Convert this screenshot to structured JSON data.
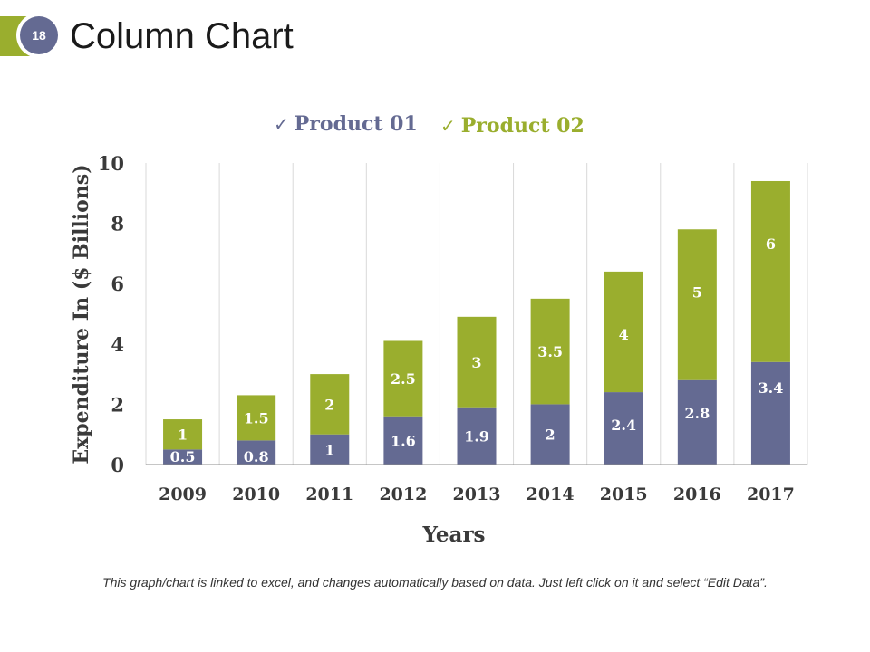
{
  "slide": {
    "page_number": "18",
    "title": "Column Chart",
    "footnote": "This graph/chart is linked to excel, and changes automatically based on data. Just left click on it and select “Edit Data”."
  },
  "colors": {
    "accent": "#9aae2e",
    "product01": "#646a92",
    "product02": "#9aae2e",
    "badge": "#646a92"
  },
  "legend": {
    "check_icon": "✓",
    "product01_label": "Product 01",
    "product02_label": "Product 02"
  },
  "chart_data": {
    "type": "bar",
    "stacked": true,
    "categories": [
      "2009",
      "2010",
      "2011",
      "2012",
      "2013",
      "2014",
      "2015",
      "2016",
      "2017"
    ],
    "series": [
      {
        "name": "Product 01",
        "values": [
          0.5,
          0.8,
          1,
          1.6,
          1.9,
          2,
          2.4,
          2.8,
          3.4
        ]
      },
      {
        "name": "Product 02",
        "values": [
          1,
          1.5,
          2,
          2.5,
          3,
          3.5,
          4,
          5,
          6
        ]
      }
    ],
    "xlabel": "Years",
    "ylabel": "Expenditure In ($ Billions)",
    "ylim": [
      0,
      10
    ],
    "yticks": [
      0,
      2,
      4,
      6,
      8,
      10
    ],
    "legend_position": "top",
    "grid": "vertical"
  }
}
